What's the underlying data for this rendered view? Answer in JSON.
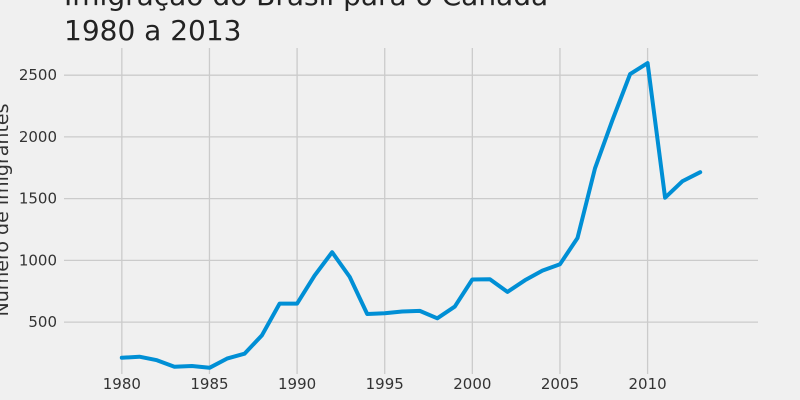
{
  "chart_data": {
    "type": "line",
    "title_lines": [
      "Imigração do Brasil para o Canadá",
      "1980 a 2013"
    ],
    "xlabel": "",
    "ylabel": "Número de imigrantes",
    "xlim": [
      1976.7,
      2016.3
    ],
    "ylim": [
      80,
      2720
    ],
    "xticks": [
      1980,
      1985,
      1990,
      1995,
      2000,
      2005,
      2010
    ],
    "yticks": [
      500,
      1000,
      1500,
      2000,
      2500
    ],
    "grid": true,
    "colors": {
      "background": "#f0f0f0",
      "line": "#008fd5",
      "grid": "#cbcbcb",
      "text": "#333333"
    },
    "series": [
      {
        "x": [
          1980,
          1981,
          1982,
          1983,
          1984,
          1985,
          1986,
          1987,
          1988,
          1989,
          1990,
          1991,
          1992,
          1993,
          1994,
          1995,
          1996,
          1997,
          1998,
          1999,
          2000,
          2001,
          2002,
          2003,
          2004,
          2005,
          2006,
          2007,
          2008,
          2009,
          2010,
          2011,
          2012,
          2013
        ],
        "y": [
          211,
          220,
          192,
          139,
          145,
          130,
          205,
          244,
          394,
          650,
          650,
          877,
          1066,
          866,
          566,
          572,
          586,
          591,
          531,
          626,
          845,
          847,
          745,
          839,
          917,
          969,
          1181,
          1746,
          2138,
          2509,
          2598,
          1508,
          1642,
          1714
        ]
      }
    ]
  }
}
